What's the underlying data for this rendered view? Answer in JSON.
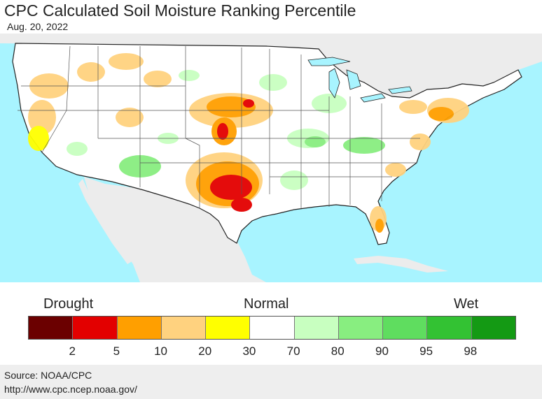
{
  "header": {
    "title": "CPC Calculated Soil Moisture Ranking Percentile",
    "date": "Aug. 20, 2022"
  },
  "legend": {
    "drought_label": "Drought",
    "normal_label": "Normal",
    "wet_label": "Wet",
    "colors": [
      "#6b0000",
      "#e30000",
      "#ff9f00",
      "#ffd27f",
      "#ffff00",
      "#ffffff",
      "#c8ffc0",
      "#88ee80",
      "#5fdd5f",
      "#33c233",
      "#149a14"
    ],
    "ticks": [
      "2",
      "5",
      "10",
      "20",
      "30",
      "70",
      "80",
      "90",
      "95",
      "98"
    ]
  },
  "footer": {
    "source": "Source: NOAA/CPC",
    "url": "http://www.cpc.ncep.noaa.gov/"
  },
  "map_colors": {
    "ocean": "#a8f4ff",
    "foreign_land": "#ececec",
    "land": "#ffffff",
    "state_borders": "#555555"
  }
}
